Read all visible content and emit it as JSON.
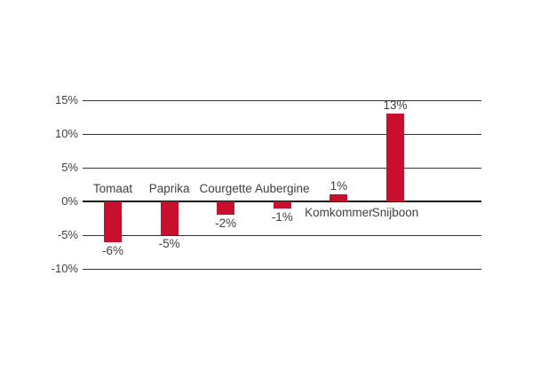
{
  "chart_data": {
    "type": "bar",
    "categories": [
      "Tomaat",
      "Paprika",
      "Courgette",
      "Aubergine",
      "Komkommer",
      "Snijboon"
    ],
    "values": [
      -6,
      -5,
      -2,
      -1,
      1,
      13
    ],
    "value_labels": [
      "-6%",
      "-5%",
      "-2%",
      "-1%",
      "1%",
      "13%"
    ],
    "unit": "%",
    "y_ticks": [
      15,
      10,
      5,
      0,
      -5,
      -10
    ],
    "y_tick_labels": [
      "15%",
      "10%",
      "5%",
      "0%",
      "-5%",
      "-10%"
    ],
    "ylim": [
      -10,
      15
    ],
    "grid": true,
    "legend": false,
    "title": "",
    "xlabel": "",
    "ylabel": "",
    "label_placement": "negative bars: category above axis, value below bar; positive bars: category below axis, value above bar",
    "colors": {
      "bar": "#C8102E",
      "zero_axis": "#111111",
      "gridline": "#333333",
      "text": "#404040",
      "background": "#FFFFFF"
    }
  }
}
